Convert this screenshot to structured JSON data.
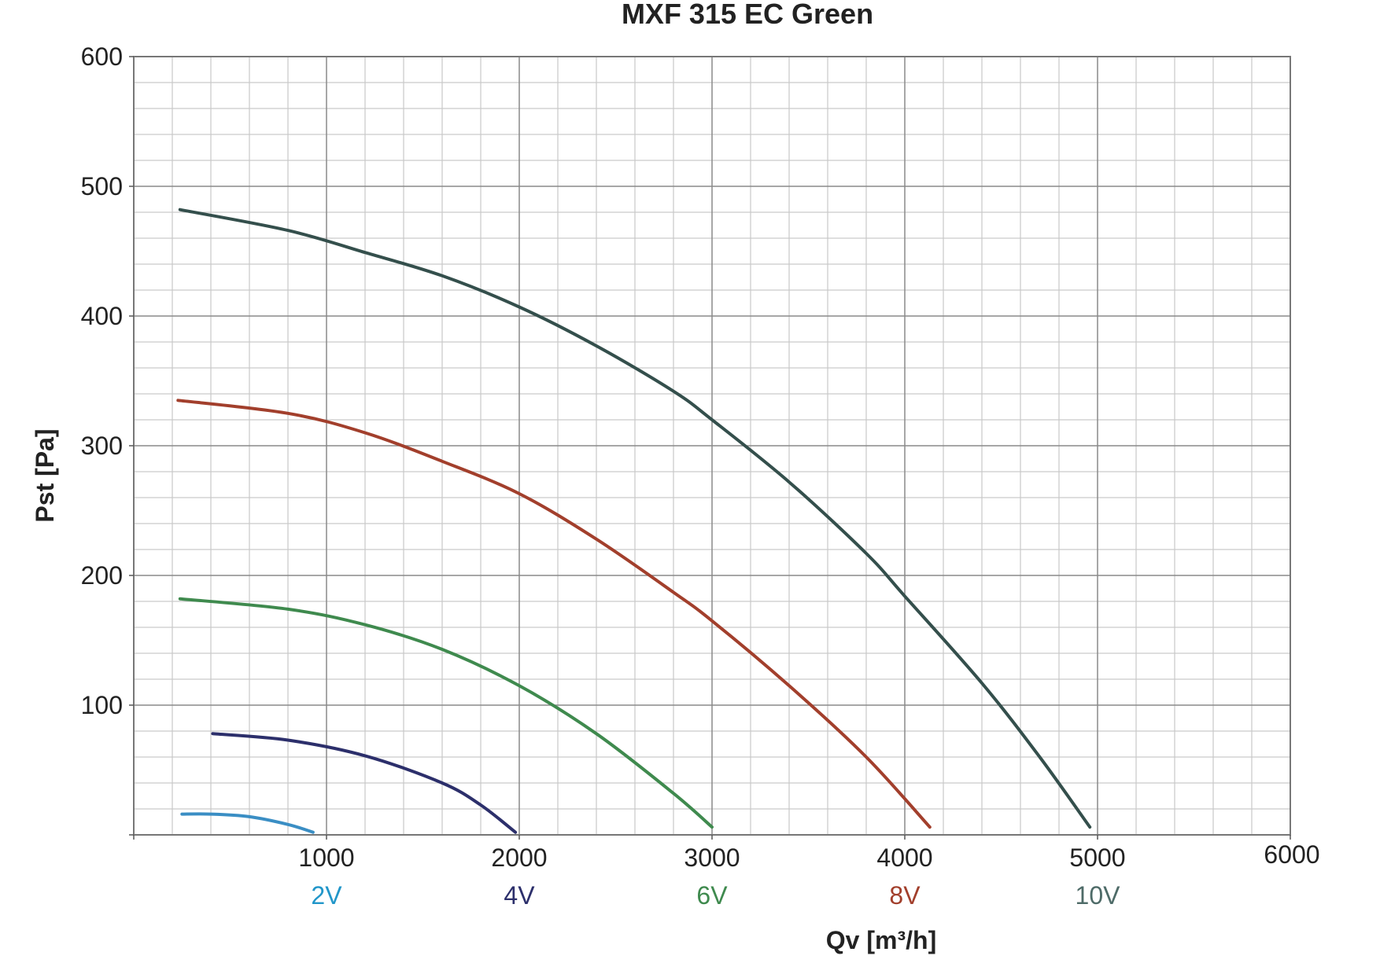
{
  "chart_data": {
    "type": "line",
    "title": "MXF 315 EC Green",
    "xlabel": "Qv [m³/h]",
    "ylabel": "Pst [Pa]",
    "xlim": [
      0,
      6000
    ],
    "ylim": [
      0,
      600
    ],
    "x_ticks": [
      1000,
      2000,
      3000,
      4000,
      5000,
      6000
    ],
    "y_ticks": [
      100,
      200,
      300,
      400,
      500,
      600
    ],
    "x_minor_step": 200,
    "y_minor_step": 20,
    "grid": true,
    "series": [
      {
        "name": "2V",
        "color": "#3a8ec4",
        "label_color": "#2196c9",
        "points": [
          [
            250,
            16
          ],
          [
            400,
            16
          ],
          [
            600,
            14
          ],
          [
            800,
            8
          ],
          [
            930,
            2
          ]
        ]
      },
      {
        "name": "4V",
        "color": "#2c2f6b",
        "label_color": "#2c2f6b",
        "points": [
          [
            410,
            78
          ],
          [
            800,
            73
          ],
          [
            1200,
            61
          ],
          [
            1600,
            40
          ],
          [
            1800,
            23
          ],
          [
            1980,
            2
          ]
        ]
      },
      {
        "name": "6V",
        "color": "#3f8a4e",
        "label_color": "#3f8a4e",
        "points": [
          [
            240,
            182
          ],
          [
            800,
            174
          ],
          [
            1200,
            162
          ],
          [
            1600,
            143
          ],
          [
            2000,
            115
          ],
          [
            2400,
            78
          ],
          [
            2800,
            32
          ],
          [
            3000,
            6
          ]
        ]
      },
      {
        "name": "8V",
        "color": "#a23f2c",
        "label_color": "#a23f2c",
        "points": [
          [
            230,
            335
          ],
          [
            800,
            325
          ],
          [
            1200,
            310
          ],
          [
            1600,
            288
          ],
          [
            2000,
            263
          ],
          [
            2400,
            228
          ],
          [
            2800,
            187
          ],
          [
            3000,
            165
          ],
          [
            3400,
            115
          ],
          [
            3800,
            60
          ],
          [
            4130,
            6
          ]
        ]
      },
      {
        "name": "10V",
        "color": "#344f4c",
        "label_color": "#4e6b68",
        "points": [
          [
            240,
            482
          ],
          [
            800,
            466
          ],
          [
            1200,
            449
          ],
          [
            1600,
            431
          ],
          [
            2000,
            407
          ],
          [
            2400,
            377
          ],
          [
            2800,
            342
          ],
          [
            3000,
            320
          ],
          [
            3400,
            272
          ],
          [
            3800,
            217
          ],
          [
            4000,
            184
          ],
          [
            4400,
            117
          ],
          [
            4700,
            60
          ],
          [
            4960,
            6
          ]
        ]
      }
    ]
  }
}
